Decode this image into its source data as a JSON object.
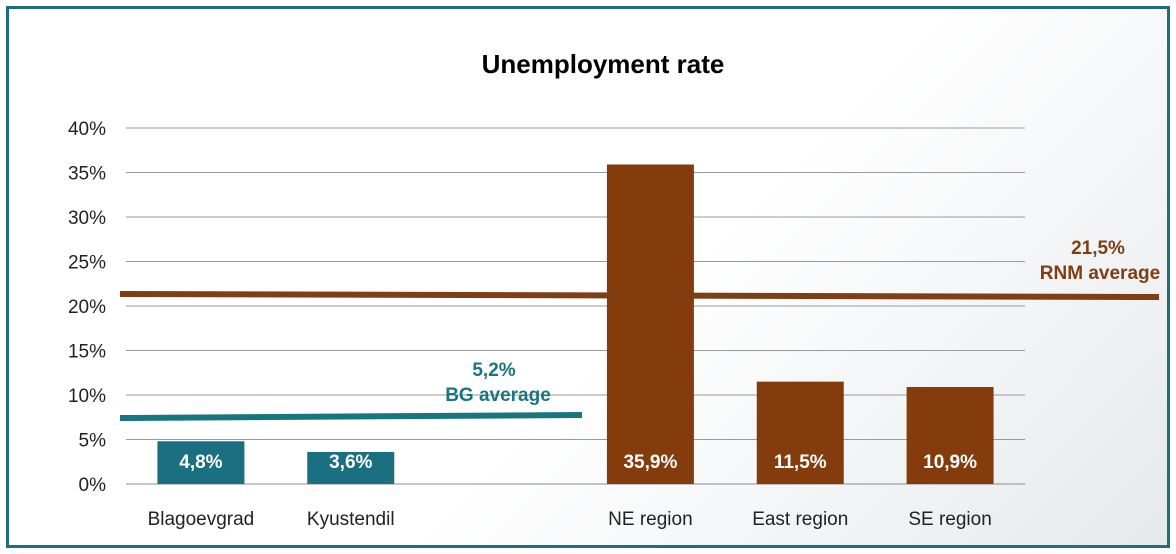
{
  "chart_data": {
    "type": "bar",
    "title": "Unemployment rate",
    "xlabel": "",
    "ylabel": "",
    "ylim": [
      0,
      40
    ],
    "y_ticks": [
      "0%",
      "5%",
      "10%",
      "15%",
      "20%",
      "25%",
      "30%",
      "35%",
      "40%"
    ],
    "grid": true,
    "categories": [
      "Blagoevgrad",
      "Kyustendil",
      "",
      "NE region",
      "East region",
      "SE region"
    ],
    "values": [
      4.8,
      3.6,
      null,
      35.9,
      11.5,
      10.9
    ],
    "data_labels": [
      "4,8%",
      "3,6%",
      "",
      "35,9%",
      "11,5%",
      "10,9%"
    ],
    "bar_colors": [
      "#1a6f80",
      "#1a6f80",
      null,
      "#843c0c",
      "#843c0c",
      "#843c0c"
    ],
    "reference_lines": [
      {
        "value_label": "5,2%",
        "label": "BG average",
        "color": "#17767f"
      },
      {
        "value_label": "21,5%",
        "label": "RNM average",
        "color": "#7f3f12"
      }
    ]
  }
}
